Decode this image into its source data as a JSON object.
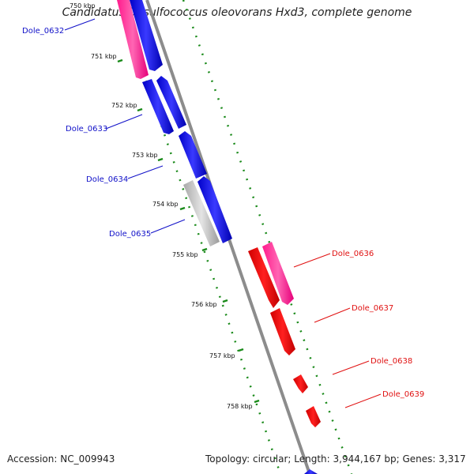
{
  "title": "Candidatus Desulfococcus oleovorans Hxd3, complete genome",
  "footer": {
    "accession": "Accession: NC_009943",
    "summary": "Topology: circular; Length: 3,944,167 bp; Genes: 3,317"
  },
  "colors": {
    "forward_strand_gene": "#1010e0",
    "reverse_strand_gene": "#ff0000",
    "rRNA_like_magenta": "#ff3399",
    "pseudo_gray": "#bdbdbd",
    "backbone": "#8c8c8c",
    "gc_skew_dots": "#1a8a1a",
    "forward_label_color": "#1010c8",
    "reverse_label_color": "#e01010"
  },
  "kbp_ticks": [
    "750 kbp",
    "751 kbp",
    "752 kbp",
    "753 kbp",
    "754 kbp",
    "755 kbp",
    "756 kbp",
    "757 kbp",
    "758 kbp"
  ],
  "forward_gene_labels": [
    "Dole_0632",
    "Dole_0633",
    "Dole_0634",
    "Dole_0635"
  ],
  "reverse_gene_labels": [
    "Dole_0636",
    "Dole_0637",
    "Dole_0638",
    "Dole_0639"
  ]
}
